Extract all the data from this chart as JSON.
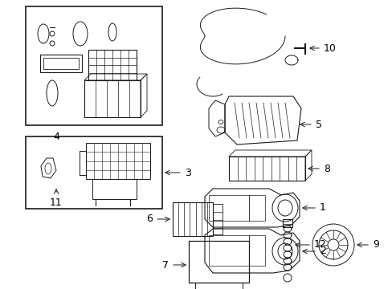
{
  "background_color": "#ffffff",
  "line_color": "#1a1a1a",
  "text_color": "#000000",
  "figsize": [
    4.89,
    3.6
  ],
  "dpi": 100,
  "lw": 0.7
}
